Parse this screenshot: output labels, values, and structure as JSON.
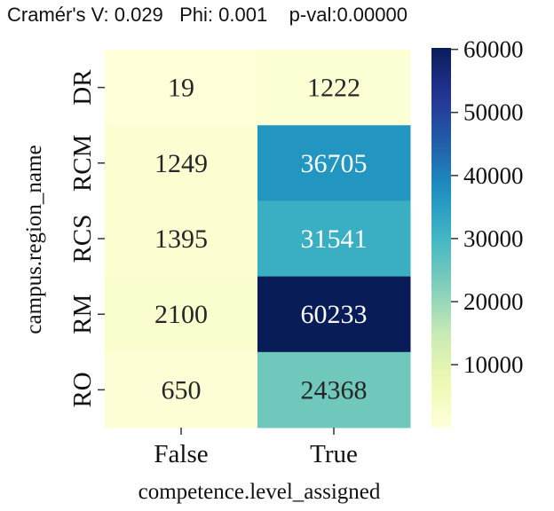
{
  "chart_data": {
    "type": "heatmap",
    "title": "Cramér's V: 0.029   Phi: 0.001    p-val:0.00000",
    "xlabel": "competence.level_assigned",
    "ylabel": "campus.region_name",
    "x_categories": [
      "False",
      "True"
    ],
    "y_categories": [
      "DR",
      "RCM",
      "RCS",
      "RM",
      "RO"
    ],
    "values": [
      [
        19,
        1222
      ],
      [
        1249,
        36705
      ],
      [
        1395,
        31541
      ],
      [
        2100,
        60233
      ],
      [
        650,
        24368
      ]
    ],
    "colormap": "YlGnBu",
    "colorbar": {
      "min": 19,
      "max": 60233,
      "ticks": [
        10000,
        20000,
        30000,
        40000,
        50000,
        60000
      ]
    },
    "colors": {
      "low": "#ffffd9",
      "high": "#081d58"
    }
  }
}
